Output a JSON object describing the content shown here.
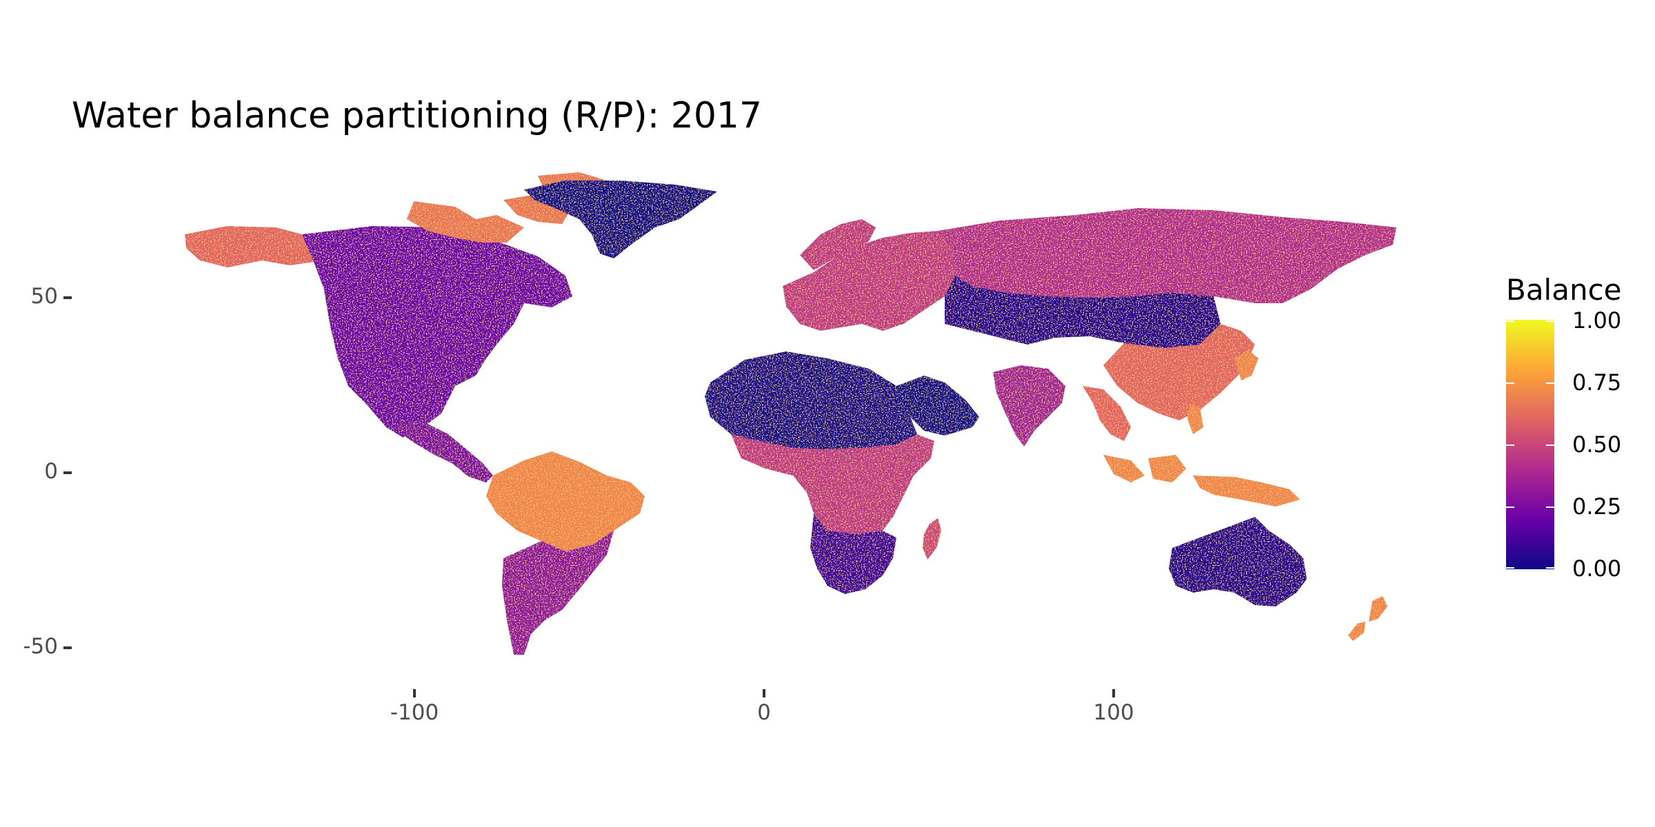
{
  "chart_data": {
    "type": "heatmap",
    "title": "Water balance partitioning (R/P): 2017",
    "xlabel": "",
    "ylabel": "",
    "x_ticks": [
      "-100",
      "0",
      "100"
    ],
    "x_tick_values": [
      -100,
      0,
      100
    ],
    "y_ticks": [
      "50",
      "0",
      "-50"
    ],
    "y_tick_values": [
      50,
      0,
      -50
    ],
    "xlim": [
      -180,
      180
    ],
    "ylim": [
      -57,
      84
    ],
    "grid": false,
    "legend": {
      "title": "Balance",
      "position": "right",
      "colormap": "plasma",
      "range": [
        0,
        1
      ],
      "labels": [
        "1.00",
        "0.75",
        "0.50",
        "0.25",
        "0.00"
      ],
      "colors": [
        "#0d0887",
        "#6a00a8",
        "#b12a90",
        "#e16462",
        "#fca636",
        "#f0f921"
      ]
    },
    "regions": [
      {
        "name": "North America",
        "value": 0.2
      },
      {
        "name": "Alaska",
        "value": 0.6
      },
      {
        "name": "Canadian Arctic",
        "value": 0.65
      },
      {
        "name": "Greenland",
        "value": 0.0
      },
      {
        "name": "Central America",
        "value": 0.25
      },
      {
        "name": "Amazon",
        "value": 0.7
      },
      {
        "name": "Southern South America",
        "value": 0.3
      },
      {
        "name": "Europe",
        "value": 0.45
      },
      {
        "name": "Siberia",
        "value": 0.4
      },
      {
        "name": "Central Asia",
        "value": 0.05
      },
      {
        "name": "Sahara",
        "value": 0.02
      },
      {
        "name": "Central Africa",
        "value": 0.45
      },
      {
        "name": "Southern Africa",
        "value": 0.1
      },
      {
        "name": "Arabian Peninsula",
        "value": 0.0
      },
      {
        "name": "India",
        "value": 0.35
      },
      {
        "name": "Southeast Asia",
        "value": 0.6
      },
      {
        "name": "Maritime Southeast Asia",
        "value": 0.7
      },
      {
        "name": "Australia",
        "value": 0.05
      },
      {
        "name": "New Zealand",
        "value": 0.7
      },
      {
        "name": "Madagascar",
        "value": 0.5
      }
    ]
  }
}
